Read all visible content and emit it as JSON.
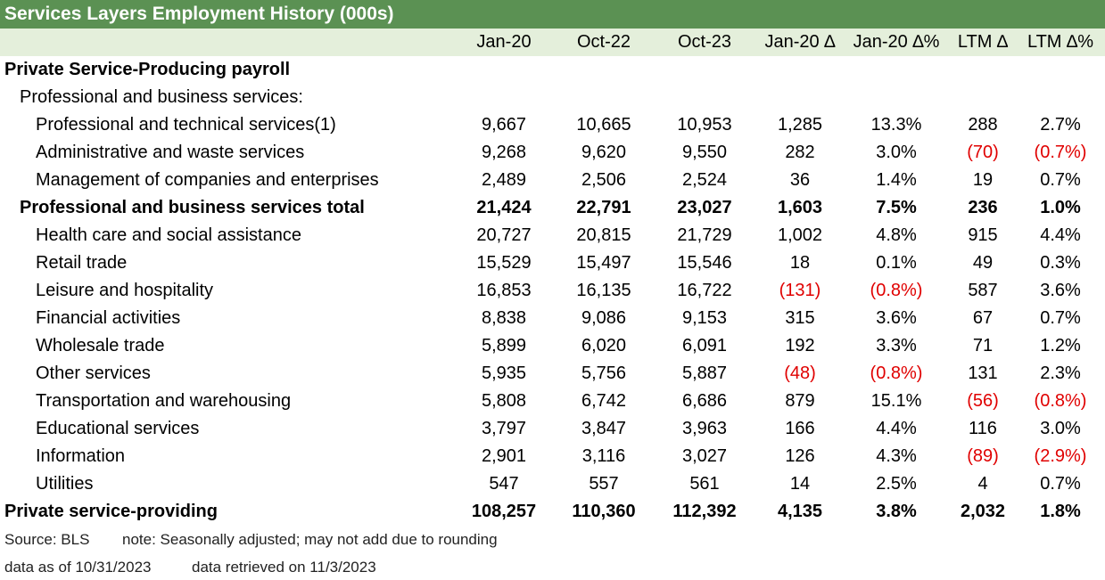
{
  "title": "Services Layers Employment History (000s)",
  "columns": [
    "Jan-20",
    "Oct-22",
    "Oct-23",
    "Jan-20 ∆",
    "Jan-20 ∆%",
    "LTM ∆",
    "LTM ∆%"
  ],
  "rows": [
    {
      "label": "Private Service-Producing payroll",
      "indent": 0,
      "bold": true,
      "cells": []
    },
    {
      "label": "Professional and business services:",
      "indent": 1,
      "bold": false,
      "cells": []
    },
    {
      "label": "Professional and technical services(1)",
      "indent": 2,
      "bold": false,
      "cells": [
        "9,667",
        "10,665",
        "10,953",
        "1,285",
        "13.3%",
        "288",
        "2.7%"
      ]
    },
    {
      "label": "Administrative and waste services",
      "indent": 2,
      "bold": false,
      "cells": [
        "9,268",
        "9,620",
        "9,550",
        "282",
        "3.0%",
        "(70)",
        "(0.7%)"
      ]
    },
    {
      "label": "Management of companies and enterprises",
      "indent": 2,
      "bold": false,
      "cells": [
        "2,489",
        "2,506",
        "2,524",
        "36",
        "1.4%",
        "19",
        "0.7%"
      ]
    },
    {
      "label": "Professional and business services total",
      "indent": 1,
      "bold": true,
      "cells": [
        "21,424",
        "22,791",
        "23,027",
        "1,603",
        "7.5%",
        "236",
        "1.0%"
      ]
    },
    {
      "label": "Health care and social assistance",
      "indent": 2,
      "bold": false,
      "cells": [
        "20,727",
        "20,815",
        "21,729",
        "1,002",
        "4.8%",
        "915",
        "4.4%"
      ]
    },
    {
      "label": "Retail trade",
      "indent": 2,
      "bold": false,
      "cells": [
        "15,529",
        "15,497",
        "15,546",
        "18",
        "0.1%",
        "49",
        "0.3%"
      ]
    },
    {
      "label": "Leisure and hospitality",
      "indent": 2,
      "bold": false,
      "cells": [
        "16,853",
        "16,135",
        "16,722",
        "(131)",
        "(0.8%)",
        "587",
        "3.6%"
      ]
    },
    {
      "label": "Financial activities",
      "indent": 2,
      "bold": false,
      "cells": [
        "8,838",
        "9,086",
        "9,153",
        "315",
        "3.6%",
        "67",
        "0.7%"
      ]
    },
    {
      "label": "Wholesale trade",
      "indent": 2,
      "bold": false,
      "cells": [
        "5,899",
        "6,020",
        "6,091",
        "192",
        "3.3%",
        "71",
        "1.2%"
      ]
    },
    {
      "label": "Other services",
      "indent": 2,
      "bold": false,
      "cells": [
        "5,935",
        "5,756",
        "5,887",
        "(48)",
        "(0.8%)",
        "131",
        "2.3%"
      ]
    },
    {
      "label": "Transportation and warehousing",
      "indent": 2,
      "bold": false,
      "cells": [
        "5,808",
        "6,742",
        "6,686",
        "879",
        "15.1%",
        "(56)",
        "(0.8%)"
      ]
    },
    {
      "label": "Educational services",
      "indent": 2,
      "bold": false,
      "cells": [
        "3,797",
        "3,847",
        "3,963",
        "166",
        "4.4%",
        "116",
        "3.0%"
      ]
    },
    {
      "label": "Information",
      "indent": 2,
      "bold": false,
      "cells": [
        "2,901",
        "3,116",
        "3,027",
        "126",
        "4.3%",
        "(89)",
        "(2.9%)"
      ]
    },
    {
      "label": "Utilities",
      "indent": 2,
      "bold": false,
      "cells": [
        "547",
        "557",
        "561",
        "14",
        "2.5%",
        "4",
        "0.7%"
      ]
    },
    {
      "label": "Private service-providing",
      "indent": 0,
      "bold": true,
      "cells": [
        "108,257",
        "110,360",
        "112,392",
        "4,135",
        "3.8%",
        "2,032",
        "1.8%"
      ]
    }
  ],
  "footnotes": {
    "source": "Source: BLS",
    "note": "note: Seasonally adjusted; may not add due to rounding",
    "data_as_of": "data as of 10/31/2023",
    "retrieved": "data retrieved on 11/3/2023"
  },
  "colors": {
    "title_bg": "#5b9153",
    "header_bg": "#e4efdb",
    "negative": "#e00000"
  }
}
